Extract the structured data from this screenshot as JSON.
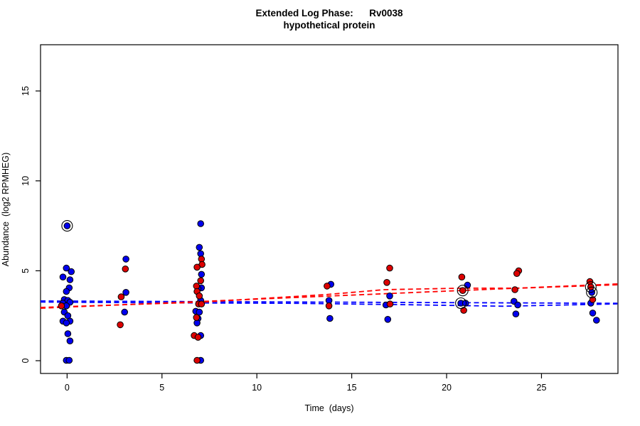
{
  "page": {
    "background": "#ffffff"
  },
  "chart_data": {
    "type": "scatter",
    "title_line1": "Extended Log Phase:      Rv0038",
    "title_line2": "hypothetical protein",
    "xlabel": "Time  (days)",
    "ylabel": "Abundance  (log2 RPMHEG)",
    "x_ticks": [
      0,
      5,
      10,
      15,
      20,
      25
    ],
    "y_ticks": [
      0,
      5,
      10,
      15
    ],
    "xlim": [
      -1.4,
      29.0
    ],
    "ylim": [
      -0.75,
      17.6
    ],
    "grid": false,
    "legend": "none",
    "timepoints": [
      0,
      3,
      7,
      14,
      17,
      21,
      24,
      28
    ],
    "series": [
      {
        "name": "strain-blue",
        "point_color": "#0000EE",
        "line_color": "#0000FF",
        "points": [
          [
            0.0,
            7.5
          ],
          [
            -0.04,
            5.15
          ],
          [
            0.22,
            4.95
          ],
          [
            -0.22,
            4.65
          ],
          [
            0.15,
            4.5
          ],
          [
            0.11,
            4.05
          ],
          [
            -0.04,
            3.85
          ],
          [
            -0.15,
            3.4
          ],
          [
            0.04,
            3.35
          ],
          [
            0.15,
            3.25
          ],
          [
            -0.22,
            3.2
          ],
          [
            -0.04,
            3.05
          ],
          [
            -0.15,
            2.7
          ],
          [
            0.04,
            2.5
          ],
          [
            -0.22,
            2.2
          ],
          [
            0.15,
            2.2
          ],
          [
            -0.04,
            2.1
          ],
          [
            0.04,
            1.5
          ],
          [
            0.15,
            1.1
          ],
          [
            -0.04,
            0.02
          ],
          [
            0.11,
            0.02
          ],
          [
            3.1,
            5.65
          ],
          [
            3.1,
            3.8
          ],
          [
            3.03,
            2.7
          ],
          [
            7.04,
            7.62
          ],
          [
            6.97,
            6.3
          ],
          [
            7.04,
            5.95
          ],
          [
            7.08,
            4.8
          ],
          [
            7.08,
            4.05
          ],
          [
            6.9,
            4.0
          ],
          [
            7.04,
            3.35
          ],
          [
            6.78,
            2.75
          ],
          [
            6.97,
            2.7
          ],
          [
            6.9,
            2.35
          ],
          [
            6.85,
            2.1
          ],
          [
            7.04,
            1.4
          ],
          [
            7.04,
            0.02
          ],
          [
            13.9,
            4.25
          ],
          [
            13.8,
            3.35
          ],
          [
            13.85,
            2.35
          ],
          [
            17.0,
            3.6
          ],
          [
            16.8,
            3.1
          ],
          [
            16.9,
            2.3
          ],
          [
            21.1,
            4.2
          ],
          [
            20.75,
            3.2
          ],
          [
            21.0,
            3.2
          ],
          [
            23.55,
            3.3
          ],
          [
            23.75,
            3.1
          ],
          [
            23.65,
            2.6
          ],
          [
            27.65,
            3.8
          ],
          [
            27.6,
            3.2
          ],
          [
            27.7,
            2.65
          ],
          [
            27.9,
            2.25
          ]
        ]
      },
      {
        "name": "strain-red",
        "point_color": "#DD0000",
        "line_color": "#FF0000",
        "points": [
          [
            -0.3,
            3.05
          ],
          [
            3.07,
            5.1
          ],
          [
            2.85,
            3.55
          ],
          [
            2.8,
            2.0
          ],
          [
            7.08,
            5.65
          ],
          [
            7.11,
            5.35
          ],
          [
            6.85,
            5.2
          ],
          [
            7.04,
            4.45
          ],
          [
            6.82,
            4.15
          ],
          [
            6.85,
            3.85
          ],
          [
            6.97,
            3.6
          ],
          [
            6.93,
            3.15
          ],
          [
            7.08,
            3.15
          ],
          [
            6.82,
            2.4
          ],
          [
            6.7,
            1.4
          ],
          [
            6.9,
            1.3
          ],
          [
            6.85,
            0.02
          ],
          [
            13.7,
            4.15
          ],
          [
            13.8,
            3.05
          ],
          [
            17.0,
            5.15
          ],
          [
            16.85,
            4.35
          ],
          [
            17.02,
            3.15
          ],
          [
            20.8,
            4.65
          ],
          [
            20.85,
            3.9
          ],
          [
            20.9,
            2.8
          ],
          [
            23.8,
            5.0
          ],
          [
            23.7,
            4.85
          ],
          [
            23.6,
            3.95
          ],
          [
            27.55,
            4.4
          ],
          [
            27.6,
            4.1
          ],
          [
            27.7,
            3.4
          ]
        ]
      }
    ],
    "trend_lines": [
      {
        "name": "blue-linear-fit",
        "color": "#0000FF",
        "style": "dashed",
        "xy": [
          [
            -1.4,
            3.32
          ],
          [
            29.0,
            3.19
          ]
        ]
      },
      {
        "name": "blue-smooth-fit",
        "color": "#0000FF",
        "style": "dashed",
        "xy": [
          [
            -1.4,
            3.26
          ],
          [
            5,
            3.22
          ],
          [
            12,
            3.19
          ],
          [
            18,
            3.11
          ],
          [
            23,
            3.03
          ],
          [
            29.0,
            3.16
          ]
        ]
      },
      {
        "name": "red-linear-fit",
        "color": "#FF0000",
        "style": "dashed",
        "xy": [
          [
            -1.4,
            2.92
          ],
          [
            29.0,
            4.27
          ]
        ]
      },
      {
        "name": "red-smooth-fit",
        "color": "#FF0000",
        "style": "dashed",
        "xy": [
          [
            -1.4,
            2.96
          ],
          [
            7,
            3.25
          ],
          [
            13.7,
            3.68
          ],
          [
            16.7,
            3.95
          ],
          [
            20.8,
            4.03
          ],
          [
            23.8,
            4.03
          ],
          [
            29.0,
            4.22
          ]
        ]
      }
    ],
    "highlighted_points": [
      [
        0.0,
        7.5
      ],
      [
        20.85,
        3.9
      ],
      [
        20.75,
        3.2
      ],
      [
        27.6,
        4.1
      ],
      [
        27.65,
        3.8
      ]
    ]
  }
}
